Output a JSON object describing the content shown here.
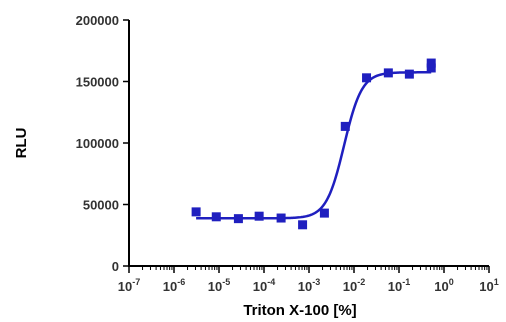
{
  "chart_data": {
    "type": "scatter",
    "xlabel": "Triton X-100 [%]",
    "ylabel": "RLU",
    "xscale": "log",
    "xlim": [
      1e-07,
      10
    ],
    "ylim": [
      0,
      200000
    ],
    "x_ticks": [
      {
        "base": "10",
        "exp": "-7",
        "value": 1e-07
      },
      {
        "base": "10",
        "exp": "-6",
        "value": 1e-06
      },
      {
        "base": "10",
        "exp": "-5",
        "value": 1e-05
      },
      {
        "base": "10",
        "exp": "-4",
        "value": 0.0001
      },
      {
        "base": "10",
        "exp": "-3",
        "value": 0.001
      },
      {
        "base": "10",
        "exp": "-2",
        "value": 0.01
      },
      {
        "base": "10",
        "exp": "-1",
        "value": 0.1
      },
      {
        "base": "10",
        "exp": "0",
        "value": 1
      },
      {
        "base": "10",
        "exp": "1",
        "value": 10
      }
    ],
    "y_ticks": [
      {
        "label": "0",
        "value": 0
      },
      {
        "label": "50000",
        "value": 50000
      },
      {
        "label": "100000",
        "value": 100000
      },
      {
        "label": "150000",
        "value": 150000
      },
      {
        "label": "200000",
        "value": 200000
      }
    ],
    "color": "#1f1fbf",
    "grid": false,
    "series": [
      {
        "points": [
          {
            "x": 3.1e-06,
            "y": 44000
          },
          {
            "x": 8.7e-06,
            "y": 40000
          },
          {
            "x": 2.7e-05,
            "y": 38500
          },
          {
            "x": 7.8e-05,
            "y": 40500
          },
          {
            "x": 0.00024,
            "y": 39000
          },
          {
            "x": 0.00072,
            "y": 33500
          },
          {
            "x": 0.0022,
            "y": 43000
          },
          {
            "x": 0.0064,
            "y": 113500
          },
          {
            "x": 0.019,
            "y": 153000
          },
          {
            "x": 0.058,
            "y": 157000
          },
          {
            "x": 0.17,
            "y": 156000
          },
          {
            "x": 0.52,
            "y": 161000
          },
          {
            "x": 0.52,
            "y": 165000
          }
        ]
      }
    ],
    "fit": {
      "type": "sigmoid",
      "bottom": 38800,
      "top": 157500,
      "logEC50": -2.22,
      "hill": 2.2
    }
  }
}
